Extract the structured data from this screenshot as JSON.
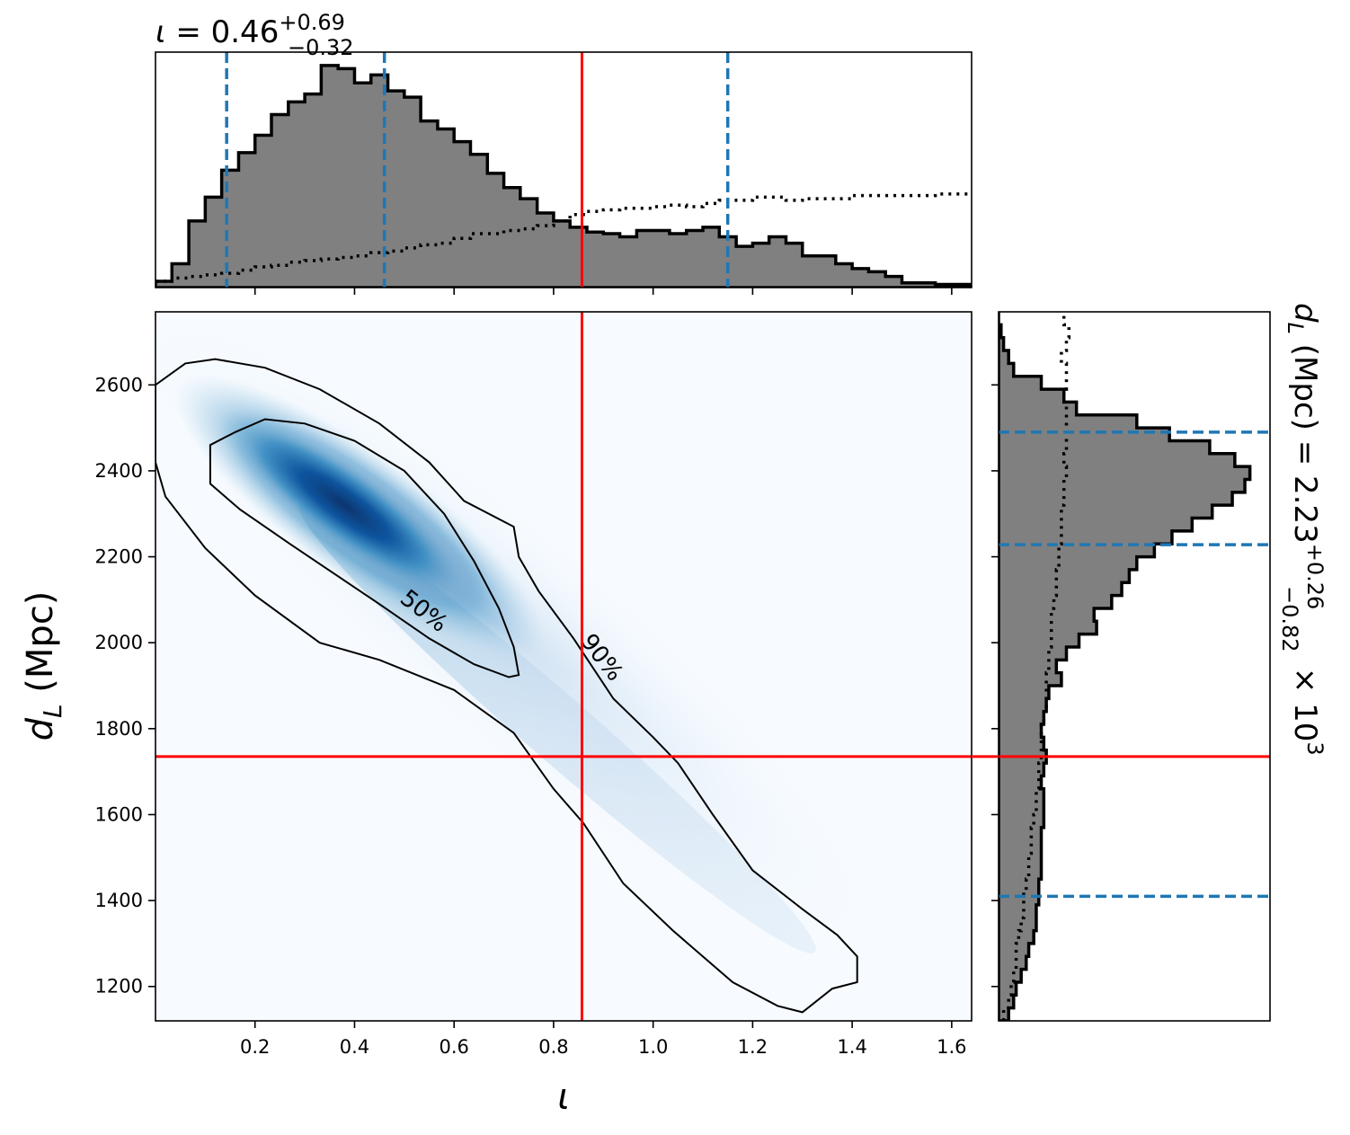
{
  "title_top": {
    "symbol": "ι",
    "eq": " = 0.46",
    "sup": "+0.69",
    "sub": "−0.32"
  },
  "title_right": {
    "prefix": "d",
    "prefix_sub": "L",
    "body": " (Mpc) = 2.23",
    "sup": "+0.26",
    "sub": "−0.82",
    "suffix": " × 10",
    "suffix_sup": "3"
  },
  "axes": {
    "xlabel": "ι",
    "ylabel": "d",
    "ylabel_sub": "L",
    "ylabel_unit": " (Mpc)"
  },
  "colors": {
    "truth": "#ff0000",
    "quantile": "#1f77b4",
    "hist_fill": "#808080",
    "hist_edge": "#000000",
    "density_low": "#f7fbff",
    "density_high": "#08306b"
  },
  "chart_data": [
    {
      "type": "heatmap",
      "panel": "joint",
      "xlabel": "ι",
      "ylabel": "d_L (Mpc)",
      "xlim": [
        0.0,
        1.64
      ],
      "ylim": [
        1120,
        2770
      ],
      "xticks": [
        "0.2",
        "0.4",
        "0.6",
        "0.8",
        "1.0",
        "1.2",
        "1.4",
        "1.6"
      ],
      "yticks": [
        "1200",
        "1400",
        "1600",
        "1800",
        "2000",
        "2200",
        "2400",
        "2600"
      ],
      "truth": {
        "x": 0.857,
        "y": 1735
      },
      "contour_labels": [
        "50%",
        "90%"
      ],
      "contour_50": [
        [
          0.11,
          2460
        ],
        [
          0.16,
          2490
        ],
        [
          0.22,
          2520
        ],
        [
          0.3,
          2510
        ],
        [
          0.4,
          2470
        ],
        [
          0.5,
          2400
        ],
        [
          0.58,
          2300
        ],
        [
          0.64,
          2190
        ],
        [
          0.69,
          2080
        ],
        [
          0.72,
          1990
        ],
        [
          0.73,
          1925
        ],
        [
          0.71,
          1920
        ],
        [
          0.64,
          1950
        ],
        [
          0.55,
          2010
        ],
        [
          0.45,
          2090
        ],
        [
          0.36,
          2160
        ],
        [
          0.27,
          2230
        ],
        [
          0.17,
          2310
        ],
        [
          0.11,
          2370
        ],
        [
          0.11,
          2460
        ]
      ],
      "contour_90": [
        [
          0.0,
          2600
        ],
        [
          0.06,
          2650
        ],
        [
          0.12,
          2660
        ],
        [
          0.22,
          2640
        ],
        [
          0.33,
          2590
        ],
        [
          0.45,
          2510
        ],
        [
          0.55,
          2420
        ],
        [
          0.62,
          2330
        ],
        [
          0.72,
          2270
        ],
        [
          0.73,
          2200
        ],
        [
          0.77,
          2120
        ],
        [
          0.84,
          2010
        ],
        [
          0.92,
          1870
        ],
        [
          1.0,
          1780
        ],
        [
          1.05,
          1720
        ],
        [
          1.12,
          1600
        ],
        [
          1.2,
          1470
        ],
        [
          1.3,
          1380
        ],
        [
          1.37,
          1320
        ],
        [
          1.41,
          1270
        ],
        [
          1.41,
          1210
        ],
        [
          1.36,
          1195
        ],
        [
          1.3,
          1140
        ],
        [
          1.25,
          1155
        ],
        [
          1.16,
          1210
        ],
        [
          1.04,
          1330
        ],
        [
          0.94,
          1440
        ],
        [
          0.86,
          1580
        ],
        [
          0.8,
          1660
        ],
        [
          0.72,
          1790
        ],
        [
          0.6,
          1890
        ],
        [
          0.45,
          1960
        ],
        [
          0.33,
          2000
        ],
        [
          0.2,
          2110
        ],
        [
          0.1,
          2220
        ],
        [
          0.02,
          2340
        ],
        [
          0.0,
          2420
        ]
      ],
      "density_peak": {
        "x": 0.38,
        "y": 2320
      }
    },
    {
      "type": "bar",
      "panel": "marginal-x",
      "variable": "ι",
      "bin_edges": [
        0.0,
        0.033,
        0.067,
        0.1,
        0.133,
        0.167,
        0.2,
        0.233,
        0.267,
        0.3,
        0.333,
        0.367,
        0.4,
        0.433,
        0.467,
        0.5,
        0.533,
        0.567,
        0.6,
        0.633,
        0.667,
        0.7,
        0.733,
        0.767,
        0.8,
        0.833,
        0.867,
        0.9,
        0.933,
        0.967,
        1.0,
        1.033,
        1.067,
        1.1,
        1.133,
        1.167,
        1.2,
        1.233,
        1.267,
        1.3,
        1.333,
        1.367,
        1.4,
        1.433,
        1.467,
        1.5,
        1.533,
        1.567,
        1.6,
        1.64
      ],
      "values": [
        0.04,
        0.15,
        0.42,
        0.57,
        0.74,
        0.85,
        0.96,
        1.09,
        1.17,
        1.22,
        1.4,
        1.38,
        1.29,
        1.34,
        1.24,
        1.2,
        1.05,
        1.0,
        0.92,
        0.84,
        0.72,
        0.63,
        0.56,
        0.47,
        0.42,
        0.38,
        0.35,
        0.34,
        0.32,
        0.36,
        0.36,
        0.34,
        0.36,
        0.38,
        0.32,
        0.26,
        0.28,
        0.32,
        0.28,
        0.2,
        0.2,
        0.15,
        0.12,
        0.1,
        0.07,
        0.03,
        0.03,
        0.02,
        0.02
      ],
      "prior_values": [
        0.04,
        0.06,
        0.07,
        0.08,
        0.09,
        0.11,
        0.13,
        0.14,
        0.16,
        0.17,
        0.18,
        0.19,
        0.2,
        0.22,
        0.23,
        0.25,
        0.27,
        0.28,
        0.31,
        0.34,
        0.34,
        0.36,
        0.37,
        0.39,
        0.42,
        0.46,
        0.48,
        0.49,
        0.5,
        0.5,
        0.51,
        0.52,
        0.51,
        0.53,
        0.55,
        0.55,
        0.57,
        0.57,
        0.55,
        0.56,
        0.56,
        0.56,
        0.58,
        0.58,
        0.58,
        0.58,
        0.58,
        0.59,
        0.59
      ],
      "quantiles": [
        0.143,
        0.46,
        1.15
      ],
      "truth": 0.857,
      "xlim": [
        0.0,
        1.64
      ]
    },
    {
      "type": "bar",
      "panel": "marginal-y",
      "orientation": "horizontal",
      "variable": "d_L (Mpc)",
      "bin_edges": [
        1120,
        1150,
        1180,
        1210,
        1240,
        1270,
        1300,
        1330,
        1360,
        1390,
        1420,
        1450,
        1480,
        1510,
        1540,
        1570,
        1600,
        1630,
        1660,
        1690,
        1720,
        1750,
        1780,
        1810,
        1840,
        1870,
        1900,
        1930,
        1960,
        1990,
        2020,
        2050,
        2080,
        2110,
        2140,
        2170,
        2200,
        2230,
        2260,
        2290,
        2320,
        2350,
        2380,
        2410,
        2440,
        2470,
        2500,
        2530,
        2560,
        2590,
        2620,
        2650,
        2680,
        2710,
        2740,
        2770
      ],
      "values": [
        0.04,
        0.06,
        0.07,
        0.09,
        0.11,
        0.12,
        0.14,
        0.15,
        0.15,
        0.16,
        0.16,
        0.17,
        0.17,
        0.17,
        0.17,
        0.18,
        0.18,
        0.18,
        0.17,
        0.18,
        0.19,
        0.18,
        0.17,
        0.18,
        0.19,
        0.2,
        0.25,
        0.23,
        0.27,
        0.32,
        0.39,
        0.38,
        0.45,
        0.49,
        0.52,
        0.55,
        0.62,
        0.69,
        0.77,
        0.85,
        0.93,
        0.98,
        1.0,
        0.94,
        0.84,
        0.68,
        0.55,
        0.31,
        0.26,
        0.17,
        0.06,
        0.04,
        0.02,
        0.01,
        0.0
      ],
      "prior_values": [
        0.02,
        0.04,
        0.05,
        0.06,
        0.07,
        0.07,
        0.08,
        0.09,
        0.1,
        0.1,
        0.11,
        0.12,
        0.12,
        0.13,
        0.13,
        0.14,
        0.15,
        0.15,
        0.16,
        0.16,
        0.17,
        0.17,
        0.17,
        0.18,
        0.19,
        0.19,
        0.19,
        0.2,
        0.2,
        0.21,
        0.21,
        0.21,
        0.22,
        0.23,
        0.23,
        0.24,
        0.24,
        0.25,
        0.25,
        0.25,
        0.26,
        0.26,
        0.27,
        0.26,
        0.27,
        0.27,
        0.27,
        0.27,
        0.26,
        0.27,
        0.27,
        0.25,
        0.27,
        0.28,
        0.26
      ],
      "quantiles": [
        1410,
        2228,
        2490
      ],
      "truth": 1735,
      "ylim": [
        1120,
        2770
      ]
    }
  ]
}
